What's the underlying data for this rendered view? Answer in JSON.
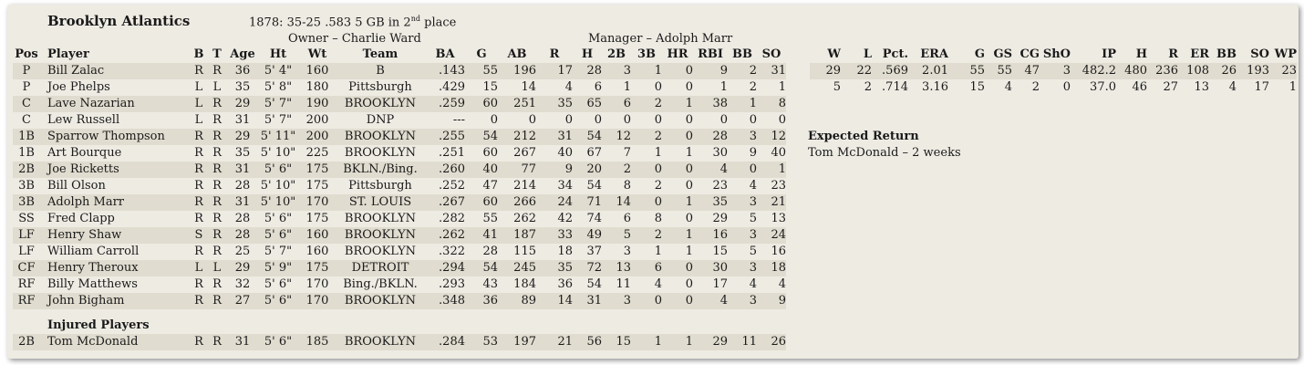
{
  "team": {
    "name": "Brooklyn Atlantics",
    "season": "1878: 35-25  .583  5 GB in 2",
    "season_sup": "nd",
    "season_tail": " place",
    "owner": "Owner – Charlie Ward",
    "manager": "Manager – Adolph Marr"
  },
  "batting_headers": [
    "Pos",
    "Player",
    "B",
    "T",
    "Age",
    "Ht",
    "Wt",
    "Team",
    "BA",
    "G",
    "AB",
    "R",
    "H",
    "2B",
    "3B",
    "HR",
    "RBI",
    "BB",
    "SO"
  ],
  "players": [
    [
      "P",
      "Bill Zalac",
      "R",
      "R",
      "36",
      "5' 4\"",
      "160",
      "B",
      ".143",
      "55",
      "196",
      "17",
      "28",
      "3",
      "1",
      "0",
      "9",
      "2",
      "31"
    ],
    [
      "P",
      "Joe Phelps",
      "L",
      "L",
      "35",
      "5' 8\"",
      "180",
      "Pittsburgh",
      ".429",
      "15",
      "14",
      "4",
      "6",
      "1",
      "0",
      "0",
      "1",
      "2",
      "1"
    ],
    [
      "C",
      "Lave Nazarian",
      "L",
      "R",
      "29",
      "5' 7\"",
      "190",
      "BROOKLYN",
      ".259",
      "60",
      "251",
      "35",
      "65",
      "6",
      "2",
      "1",
      "38",
      "1",
      "8"
    ],
    [
      "C",
      "Lew Russell",
      "L",
      "R",
      "31",
      "5' 7\"",
      "200",
      "DNP",
      "---",
      "0",
      "0",
      "0",
      "0",
      "0",
      "0",
      "0",
      "0",
      "0",
      "0"
    ],
    [
      "1B",
      "Sparrow Thompson",
      "R",
      "R",
      "29",
      "5' 11\"",
      "200",
      "BROOKLYN",
      ".255",
      "54",
      "212",
      "31",
      "54",
      "12",
      "2",
      "0",
      "28",
      "3",
      "12"
    ],
    [
      "1B",
      "Art Bourque",
      "R",
      "R",
      "35",
      "5' 10\"",
      "225",
      "BROOKLYN",
      ".251",
      "60",
      "267",
      "40",
      "67",
      "7",
      "1",
      "1",
      "30",
      "9",
      "40"
    ],
    [
      "2B",
      "Joe Ricketts",
      "R",
      "R",
      "31",
      "5' 6\"",
      "175",
      "BKLN./Bing.",
      ".260",
      "40",
      "77",
      "9",
      "20",
      "2",
      "0",
      "0",
      "4",
      "0",
      "1"
    ],
    [
      "3B",
      "Bill Olson",
      "R",
      "R",
      "28",
      "5' 10\"",
      "175",
      "Pittsburgh",
      ".252",
      "47",
      "214",
      "34",
      "54",
      "8",
      "2",
      "0",
      "23",
      "4",
      "23"
    ],
    [
      "3B",
      "Adolph Marr",
      "R",
      "R",
      "31",
      "5' 10\"",
      "170",
      "ST. LOUIS",
      ".267",
      "60",
      "266",
      "24",
      "71",
      "14",
      "0",
      "1",
      "35",
      "3",
      "21"
    ],
    [
      "SS",
      "Fred Clapp",
      "R",
      "R",
      "28",
      "5' 6\"",
      "175",
      "BROOKLYN",
      ".282",
      "55",
      "262",
      "42",
      "74",
      "6",
      "8",
      "0",
      "29",
      "5",
      "13"
    ],
    [
      "LF",
      "Henry Shaw",
      "S",
      "R",
      "28",
      "5' 6\"",
      "160",
      "BROOKLYN",
      ".262",
      "41",
      "187",
      "33",
      "49",
      "5",
      "2",
      "1",
      "16",
      "3",
      "24"
    ],
    [
      "LF",
      "William Carroll",
      "R",
      "R",
      "25",
      "5' 7\"",
      "160",
      "BROOKLYN",
      ".322",
      "28",
      "115",
      "18",
      "37",
      "3",
      "1",
      "1",
      "15",
      "5",
      "16"
    ],
    [
      "CF",
      "Henry Theroux",
      "L",
      "L",
      "29",
      "5' 9\"",
      "175",
      "DETROIT",
      ".294",
      "54",
      "245",
      "35",
      "72",
      "13",
      "6",
      "0",
      "30",
      "3",
      "18"
    ],
    [
      "RF",
      "Billy Matthews",
      "R",
      "R",
      "32",
      "5' 6\"",
      "170",
      "Bing./BKLN.",
      ".293",
      "43",
      "184",
      "36",
      "54",
      "11",
      "4",
      "0",
      "17",
      "4",
      "4"
    ],
    [
      "RF",
      "John Bigham",
      "R",
      "R",
      "27",
      "5' 6\"",
      "170",
      "BROOKLYN",
      ".348",
      "36",
      "89",
      "14",
      "31",
      "3",
      "0",
      "0",
      "4",
      "3",
      "9"
    ]
  ],
  "pitching_headers": [
    "W",
    "L",
    "Pct.",
    "ERA",
    "G",
    "GS",
    "CG",
    "ShO",
    "IP",
    "H",
    "R",
    "ER",
    "BB",
    "SO",
    "WP"
  ],
  "pitchers": [
    [
      "29",
      "22",
      ".569",
      "2.01",
      "55",
      "55",
      "47",
      "3",
      "482.2",
      "480",
      "236",
      "108",
      "26",
      "193",
      "23"
    ],
    [
      "5",
      "2",
      ".714",
      "3.16",
      "15",
      "4",
      "2",
      "0",
      "37.0",
      "46",
      "27",
      "13",
      "4",
      "17",
      "1"
    ]
  ],
  "injured": {
    "heading": "Injured Players",
    "rows": [
      [
        "2B",
        "Tom McDonald",
        "R",
        "R",
        "31",
        "5' 6\"",
        "185",
        "BROOKLYN",
        ".284",
        "53",
        "197",
        "21",
        "56",
        "15",
        "1",
        "1",
        "29",
        "11",
        "26"
      ]
    ]
  },
  "expected_return": {
    "heading": "Expected Return",
    "text": "Tom McDonald – 2 weeks"
  }
}
